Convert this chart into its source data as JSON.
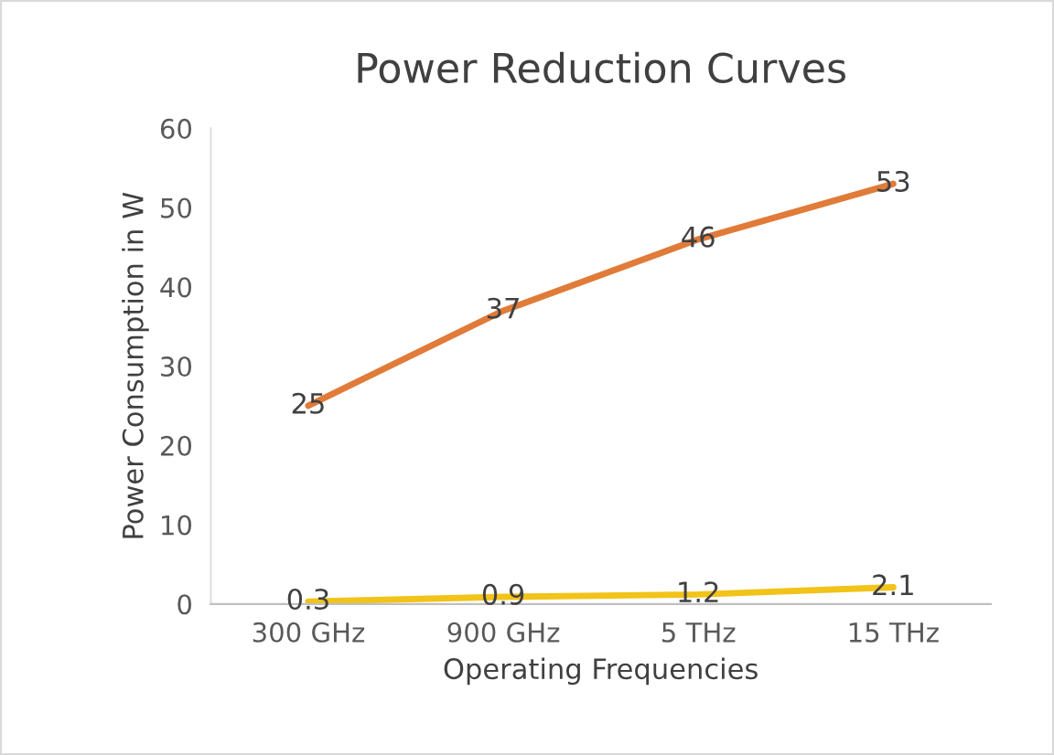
{
  "chart_data": {
    "type": "line",
    "title": "Power Reduction Curves",
    "xlabel": "Operating Frequencies",
    "ylabel": "Power Consumption in W",
    "categories": [
      "300 GHz",
      "900 GHz",
      "5 THz",
      "15 THz"
    ],
    "series": [
      {
        "color": "#e07b39",
        "values": [
          25,
          37,
          46,
          53
        ]
      },
      {
        "color": "#f2c318",
        "values": [
          0.3,
          0.9,
          1.2,
          2.1
        ]
      }
    ],
    "ylim": [
      0,
      60
    ],
    "yticks": [
      0,
      10,
      20,
      30,
      40,
      50,
      60
    ],
    "grid": false,
    "legend": false,
    "marker": "none",
    "line_style": "solid",
    "data_labels": true
  }
}
